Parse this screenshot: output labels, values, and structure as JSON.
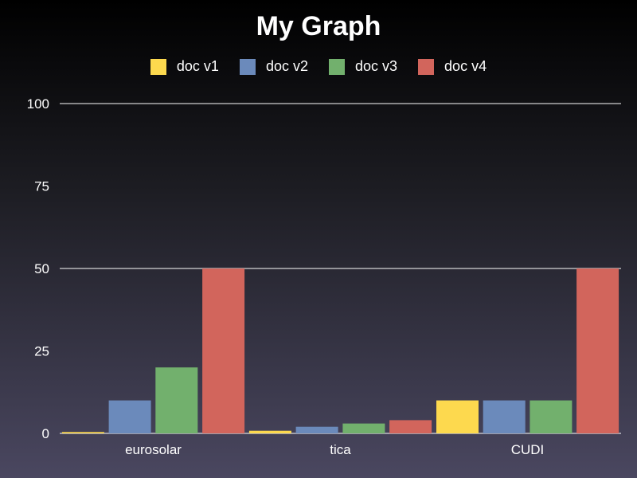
{
  "chart_data": {
    "type": "bar",
    "title": "My Graph",
    "xlabel": "",
    "ylabel": "",
    "categories": [
      "eurosolar",
      "tica",
      "CUDI"
    ],
    "series": [
      {
        "name": "doc v1",
        "color": "#fdd94e",
        "values": [
          0.4,
          0.8,
          10
        ]
      },
      {
        "name": "doc v2",
        "color": "#6b8abb",
        "values": [
          10,
          2,
          10
        ]
      },
      {
        "name": "doc v3",
        "color": "#72b06d",
        "values": [
          20,
          3,
          10
        ]
      },
      {
        "name": "doc v4",
        "color": "#d2655c",
        "values": [
          50,
          4,
          50
        ]
      }
    ],
    "ylim": [
      0,
      100
    ],
    "yticks": [
      0,
      25,
      50,
      75,
      100
    ],
    "gridlines": [
      50,
      100
    ],
    "grid": true,
    "legend_position": "top-center",
    "background": "dark-gradient"
  }
}
